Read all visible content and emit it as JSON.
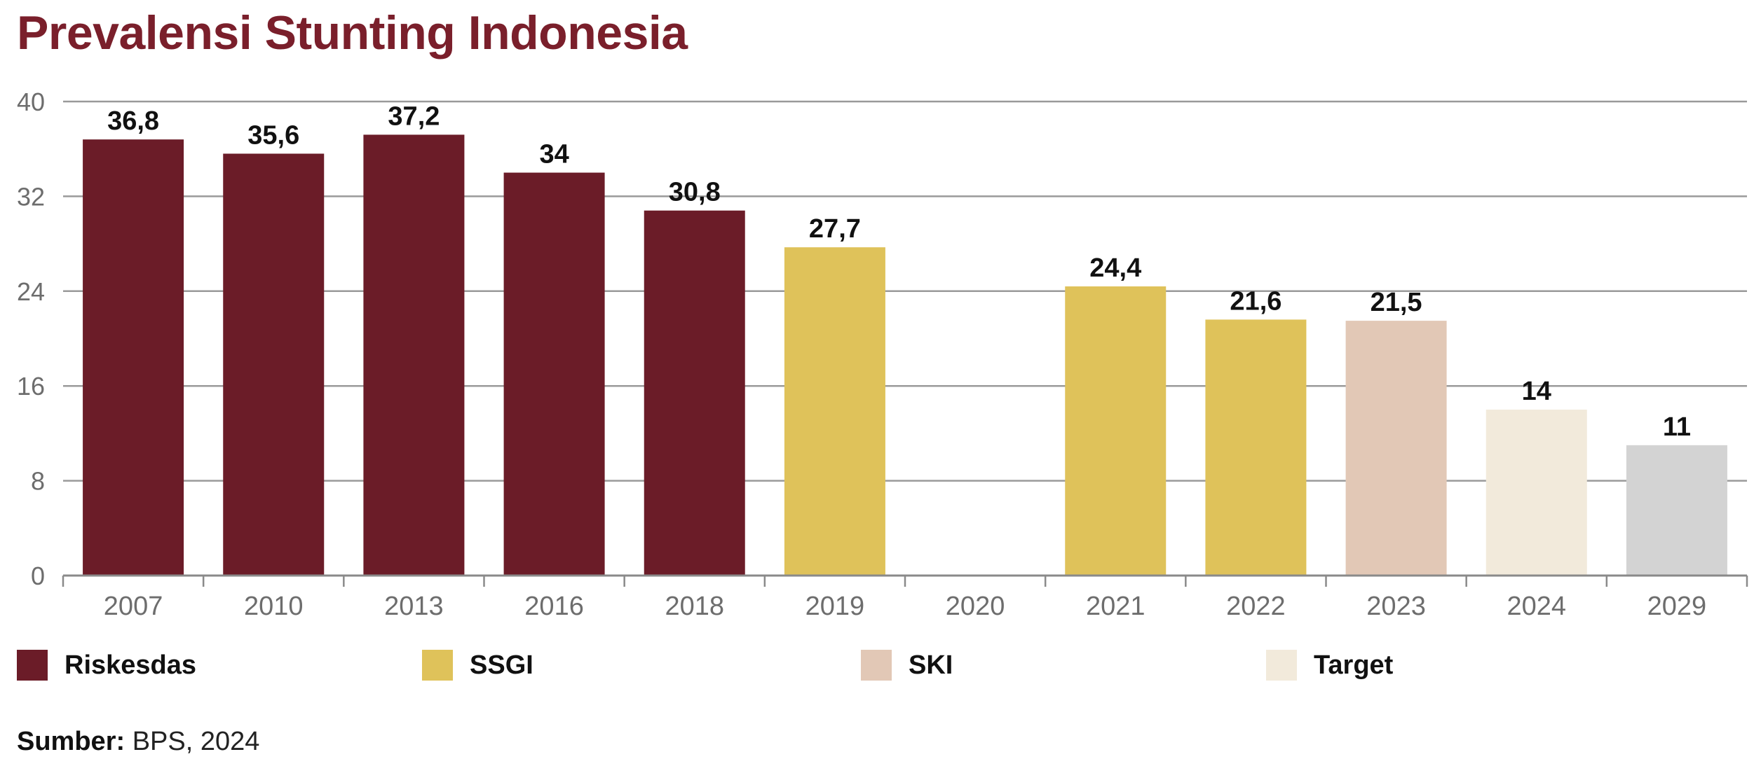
{
  "title": "Prevalensi Stunting Indonesia",
  "chart_data": {
    "type": "bar",
    "title": "Prevalensi Stunting Indonesia",
    "categories": [
      "2007",
      "2010",
      "2013",
      "2016",
      "2018",
      "2019",
      "2020",
      "2021",
      "2022",
      "2023",
      "2024",
      "2029"
    ],
    "values": [
      36.8,
      35.6,
      37.2,
      34,
      30.8,
      27.7,
      null,
      24.4,
      21.6,
      21.5,
      14,
      11
    ],
    "value_labels": [
      "36,8",
      "35,6",
      "37,2",
      "34",
      "30,8",
      "27,7",
      "",
      "24,4",
      "21,6",
      "21,5",
      "14",
      "11"
    ],
    "bar_sources": [
      "Riskesdas",
      "Riskesdas",
      "Riskesdas",
      "Riskesdas",
      "Riskesdas",
      "SSGI",
      "",
      "SSGI",
      "SSGI",
      "SKI",
      "Target",
      ""
    ],
    "bar_colors": [
      "#6b1c28",
      "#6b1c28",
      "#6b1c28",
      "#6b1c28",
      "#6b1c28",
      "#dfc25a",
      "",
      "#dfc25a",
      "#dfc25a",
      "#e2c8b6",
      "#f2eadb",
      "#d3d3d3"
    ],
    "yticks": [
      "0",
      "8",
      "16",
      "24",
      "32",
      "40"
    ],
    "ylim": [
      0,
      40
    ],
    "xlabel": "",
    "ylabel": "",
    "grid": true,
    "legend_position": "bottom",
    "legend": [
      {
        "label": "Riskesdas",
        "color": "#6b1c28"
      },
      {
        "label": "SSGI",
        "color": "#dfc25a"
      },
      {
        "label": "SKI",
        "color": "#e2c8b6"
      },
      {
        "label": "Target",
        "color": "#f2eadb"
      }
    ]
  },
  "source": {
    "label": "Sumber:",
    "text": "BPS, 2024"
  }
}
